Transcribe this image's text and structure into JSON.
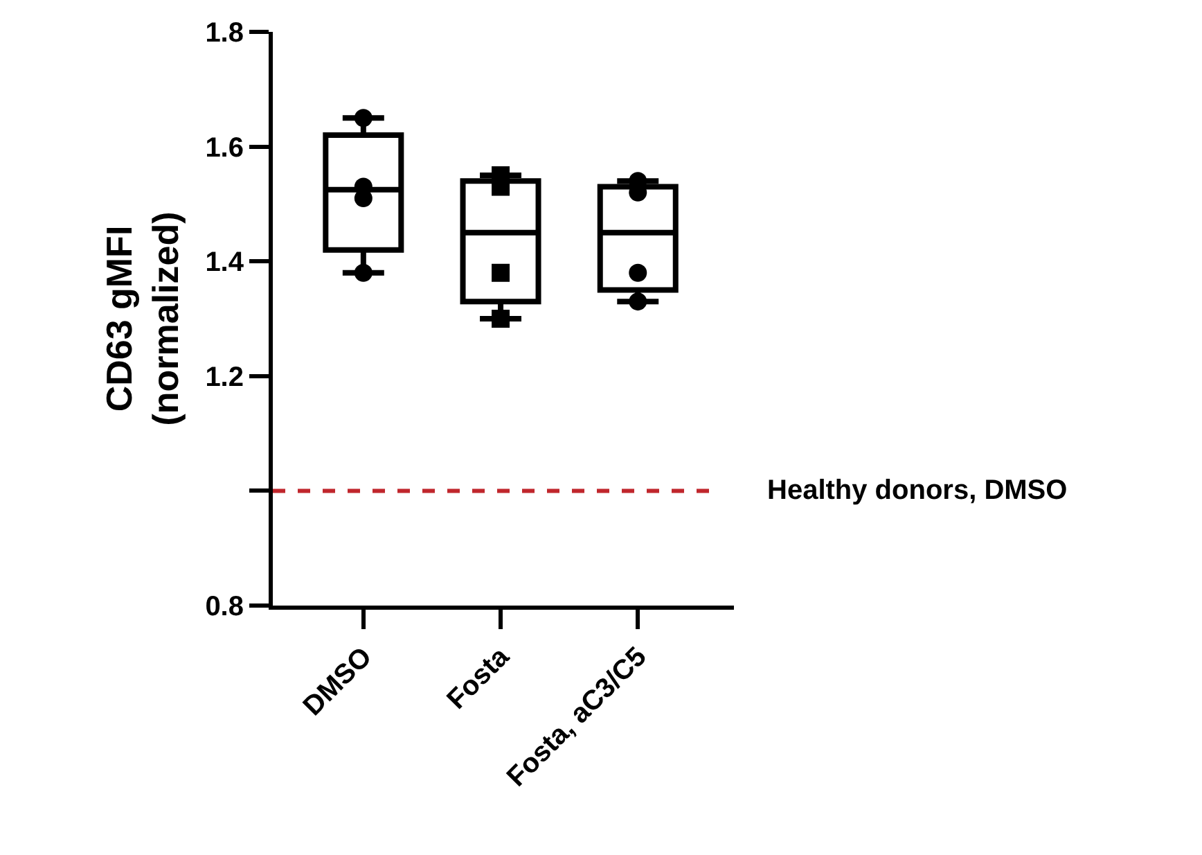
{
  "chart_data": {
    "type": "box",
    "ylabel": "CD63 gMFI\n(normalized)",
    "categories": [
      "DMSO",
      "Fosta",
      "Fosta, aC3/C5"
    ],
    "boxes": [
      {
        "low": 1.38,
        "q1": 1.42,
        "median": 1.525,
        "q3": 1.62,
        "high": 1.65
      },
      {
        "low": 1.3,
        "q1": 1.33,
        "median": 1.45,
        "q3": 1.54,
        "high": 1.55
      },
      {
        "low": 1.33,
        "q1": 1.35,
        "median": 1.45,
        "q3": 1.53,
        "high": 1.54
      }
    ],
    "color": "#000000",
    "series": [
      {
        "type": "scatter",
        "marker": "circle",
        "color": "#000000",
        "x": [
          "DMSO",
          "DMSO",
          "DMSO",
          "DMSO",
          "Fosta, aC3/C5",
          "Fosta, aC3/C5",
          "Fosta, aC3/C5",
          "Fosta, aC3/C5"
        ],
        "values": [
          1.65,
          1.53,
          1.51,
          1.38,
          1.54,
          1.52,
          1.38,
          1.33
        ]
      },
      {
        "type": "scatter",
        "marker": "square",
        "color": "#000000",
        "x": [
          "Fosta",
          "Fosta",
          "Fosta",
          "Fosta"
        ],
        "values": [
          1.55,
          1.53,
          1.38,
          1.3
        ]
      }
    ],
    "ylim": [
      0.8,
      1.8
    ],
    "yticks": [
      0.8,
      {
        "value": 1.0,
        "label": null
      },
      1.2,
      1.4,
      1.6,
      1.8
    ],
    "ref_lines": [
      {
        "axis": "y",
        "value": 1.0,
        "label": "Healthy donors, DMSO",
        "color": "#c0272d",
        "line_style": "dashed"
      }
    ],
    "grid": false
  }
}
